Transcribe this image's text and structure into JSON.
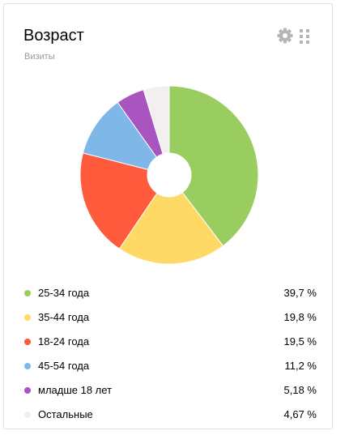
{
  "widget": {
    "title": "Возраст",
    "subtitle": "Визиты",
    "settings_icon": "gear-icon",
    "drag_icon": "grip-icon"
  },
  "chart_data": {
    "type": "pie",
    "donut": true,
    "categories": [
      "25-34 года",
      "35-44 года",
      "18-24 года",
      "45-54 года",
      "младше 18 лет",
      "Остальные"
    ],
    "values": [
      39.7,
      19.8,
      19.5,
      11.2,
      5.18,
      4.67
    ],
    "value_labels": [
      "39,7 %",
      "19,8 %",
      "19,5 %",
      "11,2 %",
      "5,18 %",
      "4,67 %"
    ],
    "colors": [
      "#9acd60",
      "#ffd966",
      "#ff5a3c",
      "#7fb8e8",
      "#a855c0",
      "#f1efef"
    ],
    "legend_placement": "bottom"
  }
}
